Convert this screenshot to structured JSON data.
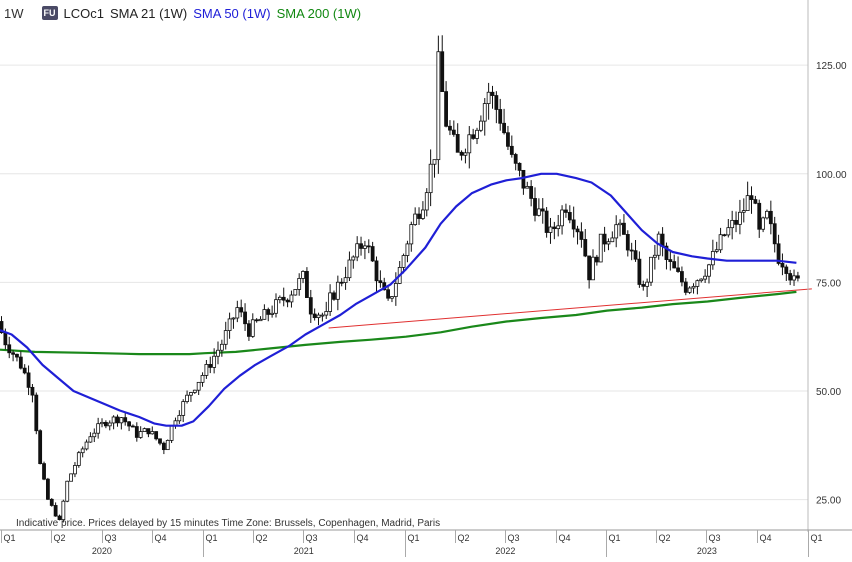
{
  "legend": {
    "timeframe": "1W",
    "badge": "FU",
    "symbol": "LCOc1",
    "sma21": "SMA 21 (1W)",
    "sma50": "SMA 50 (1W)",
    "sma200": "SMA 200 (1W)"
  },
  "footnote": "Indicative price. Prices delayed by 15 minutes    Time Zone: Brussels, Copenhagen, Madrid, Paris",
  "colors": {
    "up": "#2e2e2e",
    "down": "#111111",
    "sma50": "#1f1fd6",
    "sma200": "#1a881a",
    "trendline": "#e03030",
    "grid": "#e6e6e6"
  },
  "chart_data": {
    "type": "candlestick",
    "y_axis": {
      "ticks": [
        25,
        50,
        75,
        100,
        125
      ],
      "range": [
        18,
        140
      ],
      "position": "right"
    },
    "x_axis": {
      "quarter_labels": [
        "Q1",
        "Q2",
        "Q3",
        "Q4",
        "Q1",
        "Q2",
        "Q3",
        "Q4",
        "Q1",
        "Q2",
        "Q3",
        "Q4",
        "Q1",
        "Q2",
        "Q3",
        "Q4",
        "Q1"
      ],
      "year_labels": [
        "2020",
        "2021",
        "2022",
        "2023"
      ],
      "start": "2019-12-30",
      "end": "2024-01-01"
    },
    "price_anchors": [
      [
        "2019-12-30",
        66
      ],
      [
        "2020-01-10",
        62
      ],
      [
        "2020-02-10",
        56
      ],
      [
        "2020-03-02",
        50
      ],
      [
        "2020-03-16",
        33
      ],
      [
        "2020-03-30",
        25
      ],
      [
        "2020-04-20",
        20
      ],
      [
        "2020-05-04",
        29
      ],
      [
        "2020-05-25",
        35
      ],
      [
        "2020-06-15",
        40
      ],
      [
        "2020-07-13",
        43
      ],
      [
        "2020-08-10",
        44
      ],
      [
        "2020-09-07",
        40
      ],
      [
        "2020-09-28",
        41
      ],
      [
        "2020-10-26",
        37
      ],
      [
        "2020-11-16",
        44
      ],
      [
        "2020-12-14",
        50
      ],
      [
        "2021-01-11",
        55
      ],
      [
        "2021-02-08",
        61
      ],
      [
        "2021-03-08",
        69
      ],
      [
        "2021-03-29",
        64
      ],
      [
        "2021-05-03",
        68
      ],
      [
        "2021-06-07",
        72
      ],
      [
        "2021-07-05",
        76
      ],
      [
        "2021-07-19",
        69
      ],
      [
        "2021-08-16",
        67
      ],
      [
        "2021-08-23",
        71
      ],
      [
        "2021-09-27",
        79
      ],
      [
        "2021-10-25",
        85
      ],
      [
        "2021-11-22",
        74
      ],
      [
        "2021-12-06",
        70
      ],
      [
        "2021-12-27",
        78
      ],
      [
        "2022-01-17",
        88
      ],
      [
        "2022-02-07",
        94
      ],
      [
        "2022-02-28",
        105
      ],
      [
        "2022-03-07",
        125
      ],
      [
        "2022-03-21",
        112
      ],
      [
        "2022-04-11",
        104
      ],
      [
        "2022-05-16",
        112
      ],
      [
        "2022-06-06",
        119
      ],
      [
        "2022-06-27",
        113
      ],
      [
        "2022-07-18",
        103
      ],
      [
        "2022-08-15",
        96
      ],
      [
        "2022-09-05",
        91
      ],
      [
        "2022-09-26",
        86
      ],
      [
        "2022-10-24",
        93
      ],
      [
        "2022-11-21",
        86
      ],
      [
        "2022-12-05",
        77
      ],
      [
        "2022-12-26",
        84
      ],
      [
        "2023-01-23",
        88
      ],
      [
        "2023-02-13",
        84
      ],
      [
        "2023-03-13",
        73
      ],
      [
        "2023-04-10",
        85
      ],
      [
        "2023-04-24",
        80
      ],
      [
        "2023-05-29",
        74
      ],
      [
        "2023-06-19",
        76
      ],
      [
        "2023-07-10",
        79
      ],
      [
        "2023-08-07",
        86
      ],
      [
        "2023-09-04",
        90
      ],
      [
        "2023-09-25",
        96
      ],
      [
        "2023-10-09",
        86
      ],
      [
        "2023-10-23",
        90
      ],
      [
        "2023-11-13",
        81
      ],
      [
        "2023-11-27",
        79
      ],
      [
        "2023-12-11",
        75
      ]
    ],
    "sma50_points": [
      [
        "2019-12-30",
        64
      ],
      [
        "2020-01-20",
        63
      ],
      [
        "2020-02-17",
        60
      ],
      [
        "2020-03-16",
        56
      ],
      [
        "2020-04-13",
        53
      ],
      [
        "2020-05-11",
        50
      ],
      [
        "2020-06-08",
        48.5
      ],
      [
        "2020-07-06",
        47
      ],
      [
        "2020-08-03",
        45.5
      ],
      [
        "2020-09-07",
        44
      ],
      [
        "2020-10-05",
        42.5
      ],
      [
        "2020-10-26",
        42
      ],
      [
        "2020-11-23",
        42
      ],
      [
        "2020-12-14",
        43
      ],
      [
        "2021-01-11",
        46.5
      ],
      [
        "2021-02-08",
        50.5
      ],
      [
        "2021-03-08",
        53.5
      ],
      [
        "2021-04-05",
        56
      ],
      [
        "2021-05-03",
        58
      ],
      [
        "2021-06-07",
        60.5
      ],
      [
        "2021-07-05",
        63
      ],
      [
        "2021-08-02",
        65
      ],
      [
        "2021-09-06",
        67.5
      ],
      [
        "2021-10-04",
        70
      ],
      [
        "2021-11-01",
        72
      ],
      [
        "2021-12-06",
        74.5
      ],
      [
        "2022-01-03",
        78
      ],
      [
        "2022-02-07",
        83
      ],
      [
        "2022-03-07",
        88.5
      ],
      [
        "2022-04-04",
        92.5
      ],
      [
        "2022-05-02",
        95.5
      ],
      [
        "2022-06-06",
        97.5
      ],
      [
        "2022-07-04",
        98.5
      ],
      [
        "2022-08-01",
        99
      ],
      [
        "2022-09-05",
        100
      ],
      [
        "2022-10-03",
        100
      ],
      [
        "2022-11-07",
        99
      ],
      [
        "2022-12-05",
        98
      ],
      [
        "2023-01-09",
        95
      ],
      [
        "2023-02-06",
        91
      ],
      [
        "2023-03-06",
        87
      ],
      [
        "2023-04-03",
        84
      ],
      [
        "2023-05-01",
        82
      ],
      [
        "2023-06-05",
        81
      ],
      [
        "2023-07-03",
        80.5
      ],
      [
        "2023-08-07",
        80
      ],
      [
        "2023-09-04",
        80
      ],
      [
        "2023-10-02",
        80
      ],
      [
        "2023-11-06",
        80
      ],
      [
        "2023-12-11",
        79.5
      ]
    ],
    "sma200_points": [
      [
        "2019-12-30",
        59.5
      ],
      [
        "2020-03-02",
        59
      ],
      [
        "2020-06-01",
        58.8
      ],
      [
        "2020-09-07",
        58.5
      ],
      [
        "2020-12-07",
        58.5
      ],
      [
        "2021-01-04",
        58.7
      ],
      [
        "2021-03-01",
        59
      ],
      [
        "2021-05-03",
        59.8
      ],
      [
        "2021-07-05",
        60.6
      ],
      [
        "2021-09-06",
        61.3
      ],
      [
        "2021-11-01",
        61.8
      ],
      [
        "2022-01-03",
        62.5
      ],
      [
        "2022-03-07",
        63.5
      ],
      [
        "2022-05-02",
        64.8
      ],
      [
        "2022-07-04",
        66
      ],
      [
        "2022-09-05",
        66.8
      ],
      [
        "2022-11-07",
        67.5
      ],
      [
        "2023-01-02",
        68.5
      ],
      [
        "2023-03-06",
        69.2
      ],
      [
        "2023-05-01",
        70
      ],
      [
        "2023-07-03",
        70.6
      ],
      [
        "2023-09-04",
        71.5
      ],
      [
        "2023-11-06",
        72.3
      ],
      [
        "2023-12-11",
        72.8
      ]
    ],
    "trendline": {
      "from": [
        "2021-08-16",
        64.5
      ],
      "to": [
        "2024-01-08",
        73.5
      ]
    }
  }
}
